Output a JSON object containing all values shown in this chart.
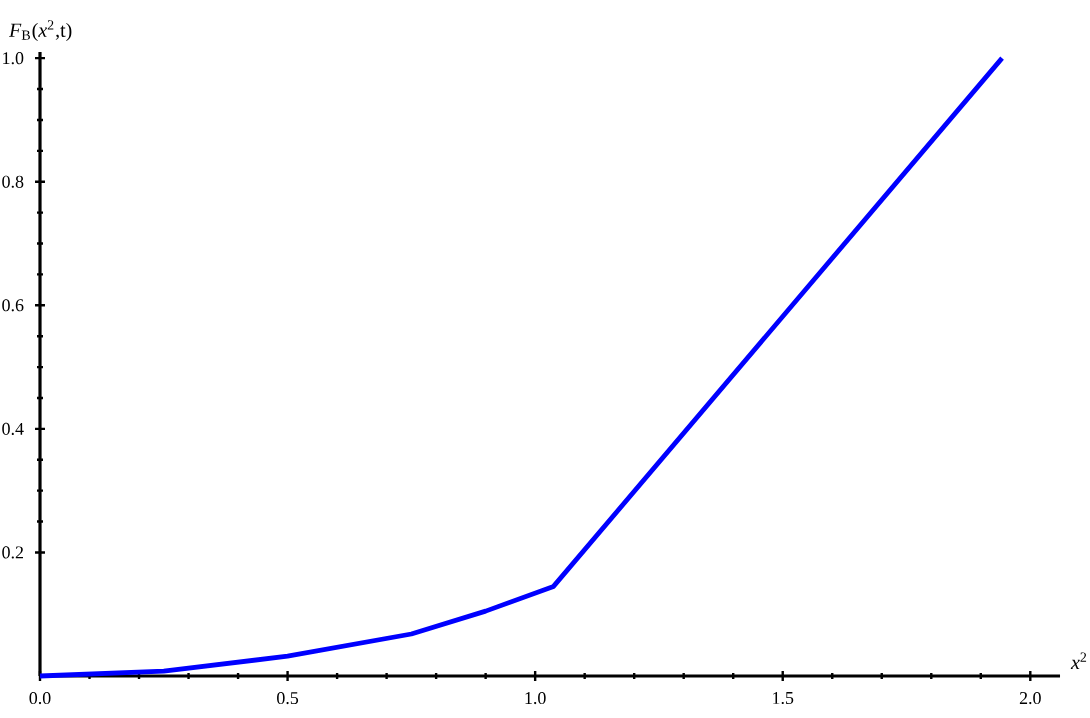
{
  "chart_data": {
    "type": "line",
    "xlabel": "*x*$^{2}$",
    "ylabel": "*F*$_{B}$(*x*$^{2}$,t)",
    "x": [
      0,
      0.25,
      0.5,
      0.75,
      0.9,
      1.037,
      1.943
    ],
    "values": [
      0,
      0.008,
      0.032,
      0.068,
      0.105,
      0.145,
      1.0
    ],
    "color": "#0000ff",
    "xlim": [
      0,
      2.06
    ],
    "ylim": [
      0,
      1.01
    ],
    "xticks": [
      {
        "value": 0,
        "label": "0.0"
      },
      0.5,
      {
        "value": 1,
        "label": "1.0"
      },
      1.5,
      {
        "value": 2,
        "label": "2.0"
      }
    ],
    "yticks": [
      0.2,
      0.4,
      0.6,
      0.8,
      {
        "value": 1,
        "label": "1.0"
      }
    ]
  }
}
